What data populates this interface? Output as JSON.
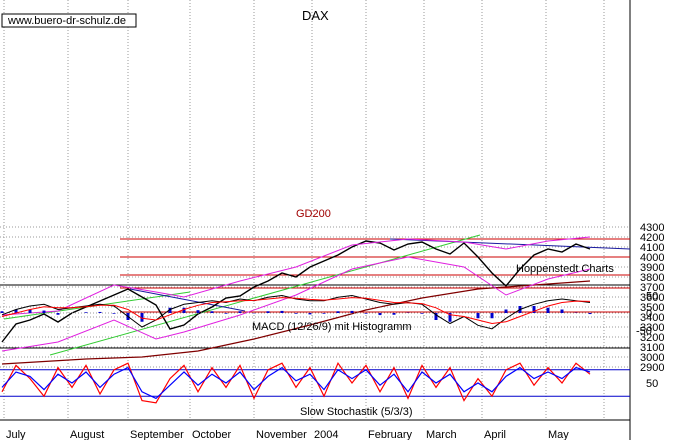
{
  "header": {
    "watermark": "www.buero-dr-schulz.de",
    "title": "DAX",
    "source": "Hoppenstedt Charts"
  },
  "months": [
    "July",
    "August",
    "September",
    "October",
    "November",
    "2004",
    "February",
    "March",
    "April",
    "May"
  ],
  "colors": {
    "price": "#000000",
    "bollinger": "#e020e0",
    "gd200": "#800000",
    "resistance": "#cc0000",
    "trend_green": "#33cc33",
    "trend_blue": "#1a1aa0",
    "macd_hist": "#0000cc",
    "stoch_fast": "#ff0000",
    "stoch_slow": "#0000ff",
    "guide": "#0000cc"
  },
  "chart_data": [
    {
      "type": "line",
      "title": "DAX",
      "x_unit": "week",
      "ylim": [
        2850,
        4300
      ],
      "yticks": [
        2900,
        3000,
        3100,
        3200,
        3300,
        3400,
        3500,
        3600,
        3700,
        3800,
        3900,
        4000,
        4100,
        4200,
        4300
      ],
      "series": [
        {
          "name": "DAX",
          "x": [
            0,
            1,
            2,
            3,
            4,
            5,
            6,
            7,
            8,
            9,
            10,
            11,
            12,
            13,
            14,
            15,
            16,
            17,
            18,
            19,
            20,
            21,
            22,
            23,
            24,
            25,
            26,
            27,
            28,
            29,
            30,
            31,
            32,
            33,
            34,
            35,
            36,
            37,
            38,
            39,
            40,
            41,
            42
          ],
          "values": [
            3150,
            3330,
            3370,
            3430,
            3350,
            3440,
            3500,
            3560,
            3620,
            3680,
            3600,
            3520,
            3280,
            3320,
            3430,
            3500,
            3590,
            3610,
            3700,
            3760,
            3840,
            3800,
            3900,
            3960,
            4020,
            4100,
            4160,
            4140,
            4070,
            4130,
            4150,
            4080,
            4030,
            4140,
            4000,
            3840,
            3710,
            3880,
            4020,
            4080,
            4050,
            4130,
            4080
          ]
        },
        {
          "name": "GD200",
          "x": [
            0,
            6,
            10,
            14,
            18,
            22,
            26,
            30,
            34,
            38,
            42
          ],
          "values": [
            2930,
            2980,
            3000,
            3060,
            3180,
            3320,
            3470,
            3590,
            3680,
            3720,
            3760
          ]
        },
        {
          "name": "Bollinger upper",
          "x": [
            0,
            4,
            8,
            11,
            13,
            17,
            21,
            25,
            29,
            33,
            36,
            39,
            42
          ],
          "values": [
            3420,
            3460,
            3720,
            3650,
            3600,
            3760,
            3900,
            4120,
            4180,
            4150,
            4080,
            4160,
            4200
          ]
        },
        {
          "name": "Bollinger lower",
          "x": [
            0,
            4,
            8,
            11,
            13,
            17,
            21,
            25,
            29,
            33,
            36,
            39,
            42
          ],
          "values": [
            3060,
            3150,
            3370,
            3180,
            3250,
            3420,
            3620,
            3880,
            4000,
            3900,
            3620,
            3780,
            3880
          ]
        }
      ],
      "horizontal_lines": [
        4180,
        4000,
        3820,
        3690,
        3450
      ],
      "label": "GD200"
    },
    {
      "type": "bar",
      "title": "MACD (12/26/9) mit Histogramm",
      "ylim": [
        -80,
        80
      ],
      "yticks": [
        50,
        0,
        -50
      ],
      "macd": [
        -5,
        10,
        20,
        25,
        10,
        15,
        20,
        25,
        20,
        -10,
        -40,
        -20,
        10,
        25,
        30,
        35,
        30,
        40,
        35,
        45,
        50,
        40,
        35,
        35,
        45,
        50,
        40,
        30,
        25,
        30,
        25,
        -5,
        -30,
        -10,
        -35,
        -45,
        -15,
        10,
        25,
        35,
        40,
        35,
        30
      ],
      "signal": [
        -10,
        0,
        10,
        18,
        15,
        15,
        18,
        22,
        22,
        10,
        -15,
        -20,
        -5,
        10,
        22,
        30,
        32,
        35,
        36,
        40,
        44,
        42,
        39,
        37,
        40,
        44,
        42,
        36,
        30,
        29,
        27,
        15,
        -5,
        -10,
        -20,
        -30,
        -25,
        -10,
        5,
        20,
        30,
        34,
        33
      ],
      "histogram": [
        5,
        10,
        10,
        7,
        -5,
        0,
        2,
        3,
        -2,
        -20,
        -25,
        0,
        15,
        15,
        8,
        5,
        -2,
        5,
        -1,
        5,
        6,
        -2,
        -4,
        -2,
        5,
        6,
        -2,
        -6,
        -5,
        1,
        -2,
        -20,
        -25,
        0,
        -15,
        -15,
        10,
        20,
        20,
        15,
        10,
        1,
        -3
      ]
    },
    {
      "type": "line",
      "title": "Slow Stochastik (5/3/3)",
      "ylim": [
        0,
        100
      ],
      "yticks": [
        50
      ],
      "guides": [
        80,
        20
      ],
      "k": [
        30,
        90,
        60,
        20,
        85,
        40,
        90,
        25,
        80,
        95,
        10,
        5,
        60,
        90,
        30,
        85,
        40,
        90,
        15,
        80,
        95,
        40,
        85,
        20,
        95,
        50,
        90,
        30,
        85,
        15,
        90,
        40,
        85,
        10,
        60,
        20,
        80,
        95,
        45,
        85,
        50,
        95,
        70
      ],
      "d": [
        40,
        75,
        65,
        35,
        70,
        50,
        75,
        40,
        70,
        85,
        30,
        15,
        45,
        75,
        45,
        70,
        50,
        75,
        35,
        65,
        85,
        55,
        70,
        35,
        80,
        60,
        80,
        45,
        70,
        30,
        75,
        50,
        70,
        30,
        50,
        30,
        65,
        85,
        60,
        75,
        60,
        85,
        75
      ]
    }
  ]
}
